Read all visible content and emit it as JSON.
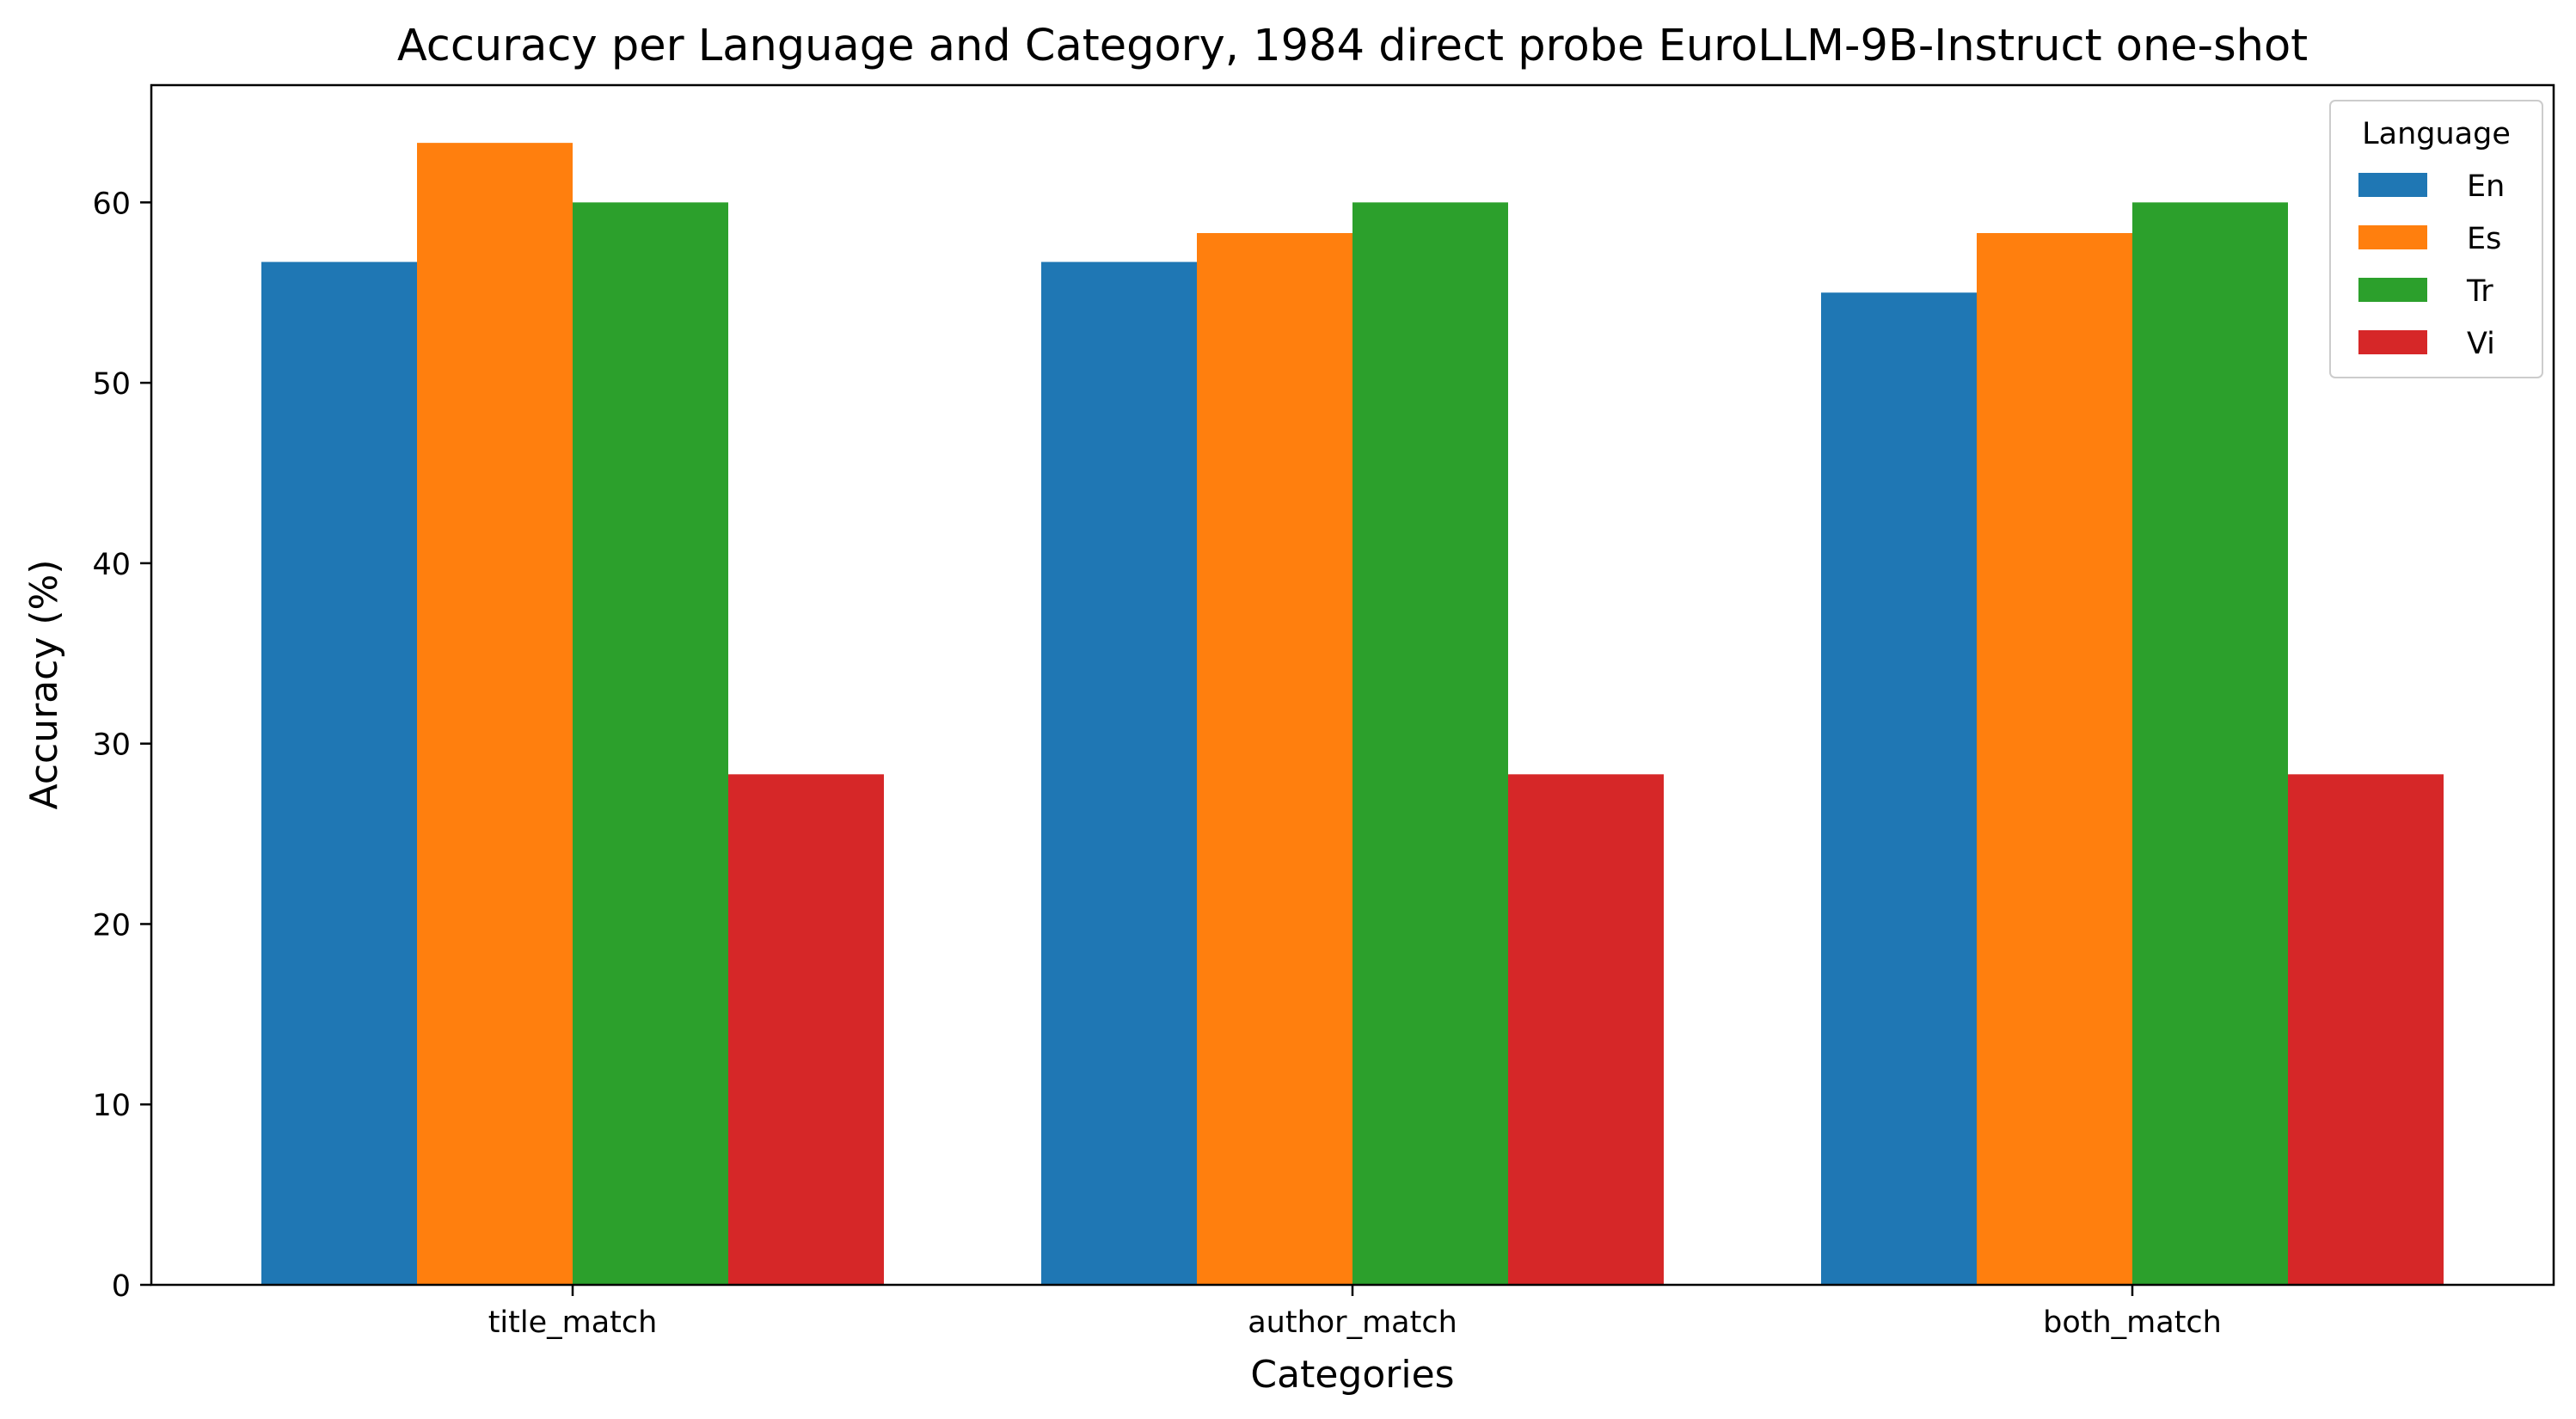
{
  "chart_data": {
    "type": "bar",
    "title": "Accuracy per Language and Category, 1984 direct probe EuroLLM-9B-Instruct one-shot",
    "xlabel": "Categories",
    "ylabel": "Accuracy (%)",
    "categories": [
      "title_match",
      "author_match",
      "both_match"
    ],
    "series": [
      {
        "name": "En",
        "color": "#1f77b4",
        "values": [
          56.7,
          56.7,
          55.0
        ]
      },
      {
        "name": "Es",
        "color": "#ff7f0e",
        "values": [
          63.3,
          58.3,
          58.3
        ]
      },
      {
        "name": "Tr",
        "color": "#2ca02c",
        "values": [
          60.0,
          60.0,
          60.0
        ]
      },
      {
        "name": "Vi",
        "color": "#d62728",
        "values": [
          28.3,
          28.3,
          28.3
        ]
      }
    ],
    "ylim": [
      0,
      66.5
    ],
    "yticks": [
      0,
      10,
      20,
      30,
      40,
      50,
      60
    ],
    "legend": {
      "title": "Language",
      "position": "top-right"
    },
    "grid": false
  }
}
